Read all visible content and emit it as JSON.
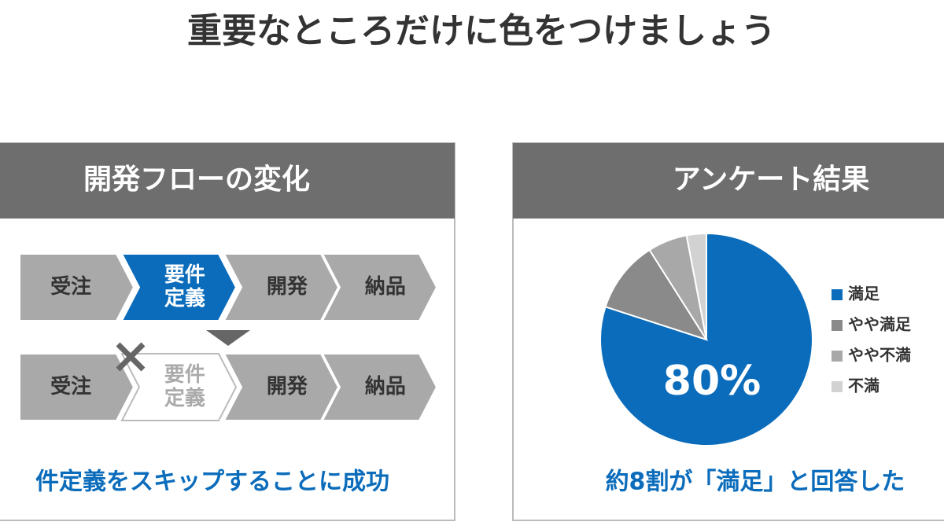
{
  "title": "重要なところだけに色をつけましょう",
  "flow_panel": {
    "header": "開発フローの変化",
    "rows": [
      {
        "steps": [
          {
            "label": [
              "受注"
            ],
            "state": "normal"
          },
          {
            "label": [
              "要件",
              "定義"
            ],
            "state": "active"
          },
          {
            "label": [
              "開発"
            ],
            "state": "normal"
          },
          {
            "label": [
              "納品"
            ],
            "state": "normal"
          }
        ]
      },
      {
        "steps": [
          {
            "label": [
              "受注"
            ],
            "state": "normal"
          },
          {
            "label": [
              "要件",
              "定義"
            ],
            "state": "skipped"
          },
          {
            "label": [
              "開発"
            ],
            "state": "normal"
          },
          {
            "label": [
              "納品"
            ],
            "state": "normal"
          }
        ]
      }
    ],
    "caption": "件定義をスキップすることに成功"
  },
  "chart_data": {
    "type": "pie",
    "title": "アンケート結果",
    "categories": [
      "満足",
      "やや満足",
      "やや不満",
      "不満"
    ],
    "values": [
      80,
      11,
      6,
      3
    ],
    "value_labels": [
      "80%",
      null,
      null,
      null
    ],
    "colors": [
      "#0b6cbb",
      "#8a8a8a",
      "#a8a8a8",
      "#d2d2d2"
    ],
    "caption": "約8割が「満足」と回答した"
  }
}
